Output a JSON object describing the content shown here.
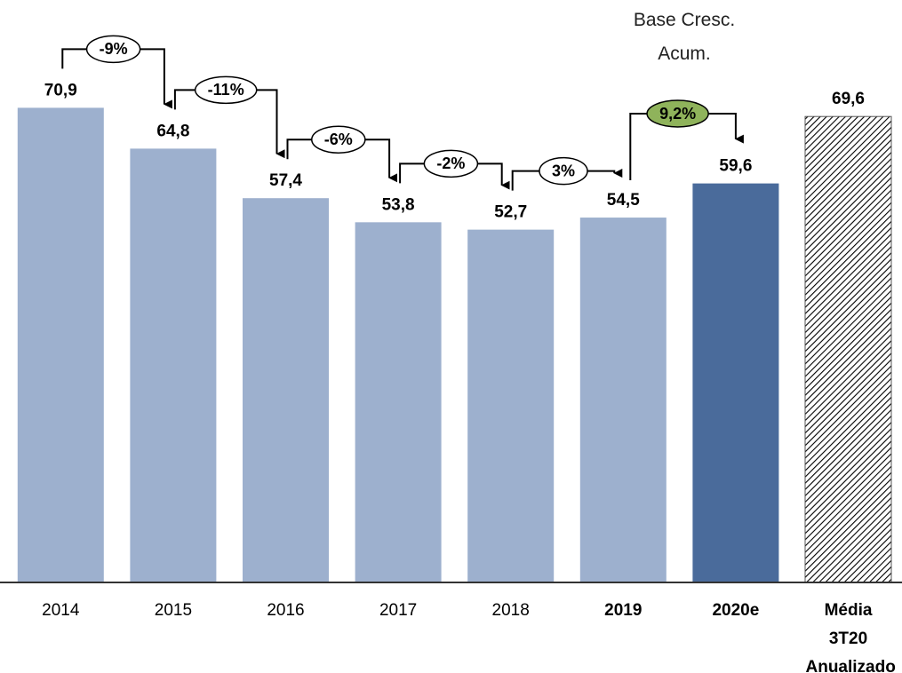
{
  "chart_data": {
    "type": "bar",
    "annotation": "Base Cresc. Acum.",
    "categories": [
      "2014",
      "2015",
      "2016",
      "2017",
      "2018",
      "2019",
      "2020e",
      "Média 3T20 Anualizado"
    ],
    "values": [
      70.9,
      64.8,
      57.4,
      53.8,
      52.7,
      54.5,
      59.6,
      69.6
    ],
    "value_labels": [
      "70,9",
      "64,8",
      "57,4",
      "53,8",
      "52,7",
      "54,5",
      "59,6",
      "69,6"
    ],
    "colors": [
      "#9db0ce",
      "#9db0ce",
      "#9db0ce",
      "#9db0ce",
      "#9db0ce",
      "#9db0ce",
      "#4a6b9b",
      "#000000"
    ],
    "hatched_categories": [
      7
    ],
    "bold_categories": [
      5,
      6,
      7
    ],
    "growth_labels": [
      "-9%",
      "-11%",
      "-6%",
      "-2%",
      "3%",
      "9,2%"
    ],
    "highlight_color": "#8fb35b",
    "ylim": [
      0,
      87
    ]
  }
}
